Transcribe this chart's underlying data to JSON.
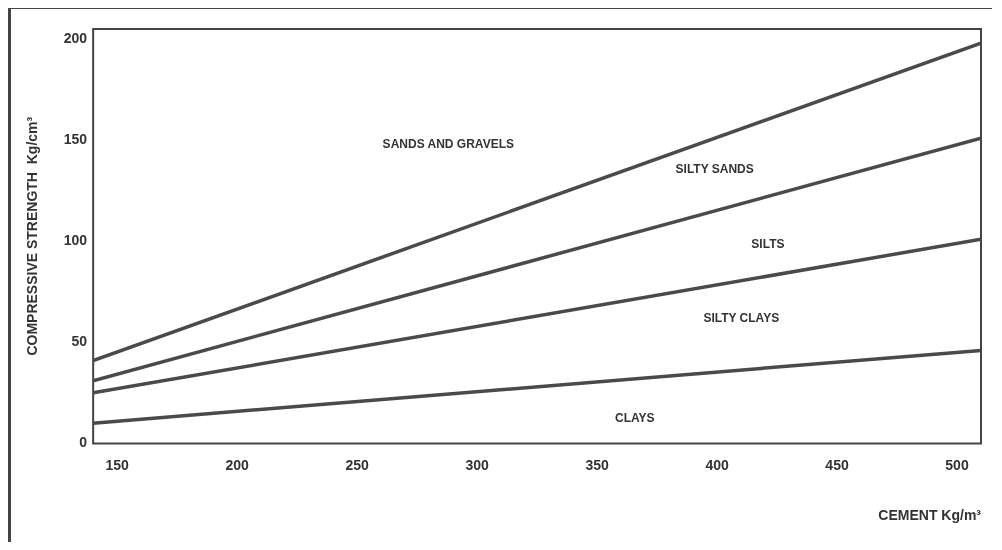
{
  "chart_data": {
    "type": "line",
    "xlabel": "CEMENT Kg/m³",
    "ylabel": "COMPRESSIVE STRENGTH  Kg/cm³",
    "x": [
      140,
      510
    ],
    "series": [
      {
        "color": "#4a4a4a",
        "values": [
          41,
          198
        ]
      },
      {
        "color": "#4a4a4a",
        "values": [
          31,
          151
        ]
      },
      {
        "color": "#4a4a4a",
        "values": [
          25,
          101
        ]
      },
      {
        "color": "#4a4a4a",
        "values": [
          10,
          46
        ]
      }
    ],
    "xlim": [
      140,
      510
    ],
    "xticks": [
      150,
      200,
      250,
      300,
      350,
      400,
      450,
      500
    ],
    "ylim": [
      0,
      205
    ],
    "yticks": [
      0,
      50,
      100,
      150,
      200
    ],
    "grid": false,
    "legend": false,
    "marker": "none",
    "line_style": "solid",
    "annotations": [
      "SANDS AND GRAVELS",
      "SILTY SANDS",
      "SILTS",
      "SILTY CLAYS",
      "CLAYS"
    ]
  }
}
